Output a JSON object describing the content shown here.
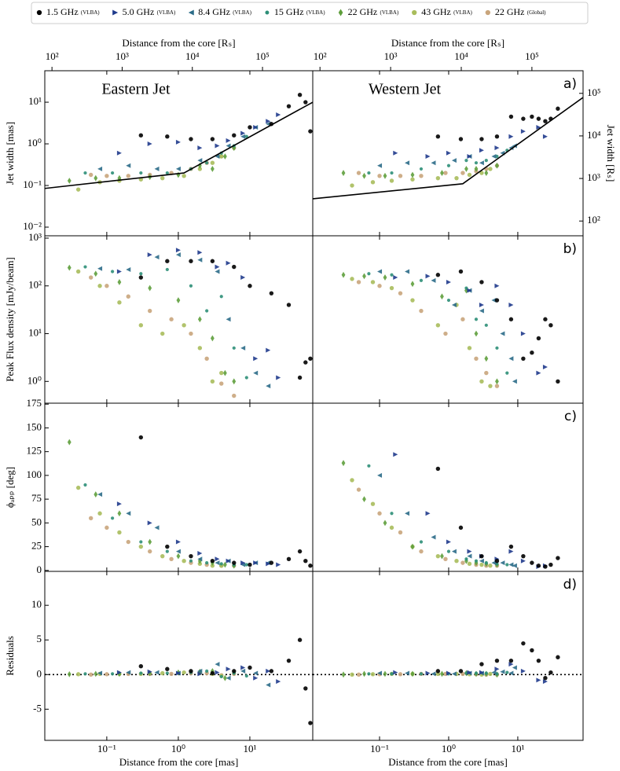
{
  "legend": {
    "items": [
      {
        "name": "1.5 GHz",
        "note": "(VLBA)",
        "color": "#000000",
        "marker": "circle"
      },
      {
        "name": "5.0 GHz",
        "note": "(VLBA)",
        "color": "#1f3a8c",
        "marker": "tri-right"
      },
      {
        "name": "8.4 GHz",
        "note": "(VLBA)",
        "color": "#2b6c88",
        "marker": "tri-left"
      },
      {
        "name": "15 GHz",
        "note": "(VLBA)",
        "color": "#2e8f78",
        "marker": "dot"
      },
      {
        "name": "22 GHz",
        "note": "(VLBA)",
        "color": "#5e9e3c",
        "marker": "diamond"
      },
      {
        "name": "43 GHz",
        "note": "(VLBA)",
        "color": "#a9bd5c",
        "marker": "hex"
      },
      {
        "name": "22 GHz",
        "note": "(Global)",
        "color": "#c9a57c",
        "marker": "circle"
      }
    ]
  },
  "chart_data": [
    {
      "type": "scatter",
      "title": "Eastern Jet",
      "xlabel": "Distance from the core [mas]",
      "x2label": "Distance from the core [Rₛ]",
      "xlog": true,
      "xlim": [
        0.0136,
        75.7
      ],
      "xticks": [
        {
          "value": 0.1,
          "label": "10⁻¹"
        },
        {
          "value": 1,
          "label": "10⁰"
        },
        {
          "value": 10,
          "label": "10¹"
        }
      ],
      "x2lim": [
        79,
        520000
      ],
      "x2ticks": [
        {
          "value": 100,
          "label": "10²"
        },
        {
          "value": 1000,
          "label": "10³"
        },
        {
          "value": 10000,
          "label": "10⁴"
        },
        {
          "value": 100000,
          "label": "10⁵"
        }
      ],
      "x": [
        [
          0.3,
          0.7,
          1.5,
          3,
          6,
          10,
          20,
          35,
          50,
          60,
          70
        ],
        [
          0.15,
          0.4,
          1,
          2,
          3.5,
          5,
          8,
          12,
          18,
          25
        ],
        [
          0.08,
          0.2,
          0.5,
          1,
          2,
          3.5,
          5,
          8,
          12,
          18
        ],
        [
          0.05,
          0.12,
          0.3,
          0.7,
          1.5,
          2.5,
          4,
          6,
          9
        ],
        [
          0.03,
          0.07,
          0.15,
          0.4,
          1,
          2,
          3,
          4.5,
          6
        ],
        [
          0.04,
          0.08,
          0.15,
          0.3,
          0.6,
          1.2,
          2,
          3,
          4
        ],
        [
          0.06,
          0.1,
          0.2,
          0.4,
          0.8,
          1.5,
          2.5,
          4,
          6
        ]
      ],
      "panels": [
        {
          "ylabel": "Jet width [mas]",
          "log": true,
          "ylim": [
            0.0062,
            57
          ],
          "yticks": [
            {
              "value": 0.01,
              "label": "10⁻²"
            },
            {
              "value": 0.1,
              "label": "10⁻¹"
            },
            {
              "value": 1,
              "label": "10⁰"
            },
            {
              "value": 10,
              "label": "10¹"
            }
          ],
          "fit": {
            "color": "#000000",
            "x": [
              0.0136,
              1.2,
              75.7
            ],
            "values": [
              0.085,
              0.2,
              10
            ]
          },
          "values": [
            [
              1.6,
              1.5,
              1.3,
              1.3,
              1.6,
              2.5,
              3,
              8,
              15,
              10,
              2
            ],
            [
              0.6,
              1.0,
              1.1,
              0.8,
              0.9,
              1.2,
              1.8,
              2.5,
              3.5,
              5
            ],
            [
              0.25,
              0.3,
              0.25,
              0.25,
              0.4,
              0.5,
              0.9,
              1.5,
              2.5,
              3
            ],
            [
              0.2,
              0.2,
              0.2,
              0.2,
              0.25,
              0.35,
              0.6,
              0.9,
              1.5
            ],
            [
              0.13,
              0.15,
              0.15,
              0.16,
              0.18,
              0.3,
              0.25,
              0.5,
              0.8
            ],
            [
              0.08,
              0.12,
              0.13,
              0.14,
              0.15,
              0.17,
              0.25,
              0.35,
              0.5
            ],
            [
              0.18,
              0.17,
              0.17,
              0.18,
              0.2,
              0.25,
              0.35,
              0.5,
              0.8
            ]
          ]
        },
        {
          "ylabel": "Peak Flux density [mJy/beam]",
          "log": true,
          "ylim": [
            0.35,
            1120
          ],
          "yticks": [
            {
              "value": 1,
              "label": "10⁰"
            },
            {
              "value": 10,
              "label": "10¹"
            },
            {
              "value": 100,
              "label": "10²"
            },
            {
              "value": 1000,
              "label": "10³"
            }
          ],
          "values": [
            [
              150,
              330,
              330,
              330,
              250,
              100,
              70,
              40,
              1.2,
              2.5,
              3
            ],
            [
              200,
              450,
              560,
              500,
              250,
              300,
              150,
              3,
              4.5,
              1.2
            ],
            [
              230,
              220,
              400,
              450,
              350,
              200,
              20,
              5,
              1.5,
              0.8
            ],
            [
              250,
              200,
              180,
              220,
              100,
              30,
              60,
              5,
              1.2
            ],
            [
              240,
              180,
              120,
              90,
              50,
              20,
              8,
              1.5,
              1
            ],
            [
              200,
              100,
              45,
              15,
              10,
              15,
              5,
              1,
              1.5
            ],
            [
              150,
              100,
              60,
              30,
              20,
              10,
              3,
              0.9,
              0.5
            ]
          ]
        },
        {
          "ylabel": "ϕₐₚₚ [deg]",
          "log": false,
          "ylim": [
            -1,
            176
          ],
          "yticks": [
            0,
            25,
            50,
            75,
            100,
            125,
            150,
            175
          ],
          "values": [
            [
              140,
              25,
              15,
              10,
              8,
              6,
              8,
              12,
              20,
              10,
              5
            ],
            [
              70,
              50,
              30,
              18,
              12,
              10,
              8,
              8,
              7,
              6
            ],
            [
              80,
              60,
              45,
              20,
              12,
              8,
              10,
              6,
              8,
              8
            ],
            [
              90,
              55,
              30,
              20,
              10,
              8,
              7,
              6,
              6
            ],
            [
              135,
              80,
              60,
              30,
              15,
              10,
              8,
              6,
              5
            ],
            [
              87,
              60,
              40,
              25,
              15,
              10,
              7,
              5,
              5
            ],
            [
              55,
              45,
              30,
              20,
              12,
              8,
              6,
              5,
              5
            ]
          ]
        },
        {
          "ylabel": "Residuals",
          "log": false,
          "ylim": [
            -9.5,
            14.9
          ],
          "yticks": [
            -5,
            0,
            5,
            10
          ],
          "hline": 0,
          "values": [
            [
              1.2,
              0.8,
              0.5,
              0.2,
              0.5,
              1,
              0.5,
              2,
              5,
              -2,
              -7
            ],
            [
              0.3,
              0.4,
              0.2,
              0.1,
              0.3,
              0.8,
              1,
              -0.5,
              0.5,
              -1
            ],
            [
              0.2,
              0.3,
              0.3,
              0.2,
              0.5,
              1.5,
              -0.5,
              0.5,
              0.2,
              -1.5
            ],
            [
              0.1,
              0.1,
              0.2,
              0.2,
              0.3,
              0.5,
              -0.3,
              0.2,
              -0.2
            ],
            [
              0.05,
              0.1,
              0.1,
              0.2,
              0.3,
              0.4,
              0.5,
              -0.5,
              0.3
            ],
            [
              0.05,
              0.1,
              0.1,
              0.1,
              0.2,
              0.3,
              0.2,
              0.1,
              -0.2
            ],
            [
              0.0,
              0.05,
              0.1,
              0.1,
              0.1,
              0.2,
              0.2,
              -0.1,
              0.1
            ]
          ]
        }
      ]
    },
    {
      "type": "scatter",
      "title": "Western Jet",
      "xlabel": "Distance from the core [mas]",
      "x2label": "Distance from the core [Rₛ]",
      "xlog": true,
      "xlim": [
        0.0108,
        88
      ],
      "xticks": [
        {
          "value": 0.1,
          "label": "10⁻¹"
        },
        {
          "value": 1,
          "label": "10⁰"
        },
        {
          "value": 10,
          "label": "10¹"
        }
      ],
      "x2lim": [
        79,
        530000
      ],
      "x2ticks": [
        {
          "value": 100,
          "label": "10²"
        },
        {
          "value": 1000,
          "label": "10³"
        },
        {
          "value": 10000,
          "label": "10⁴"
        },
        {
          "value": 100000,
          "label": "10⁵"
        }
      ],
      "x": [
        [
          0.7,
          1.5,
          3,
          5,
          8,
          12,
          16,
          20,
          25,
          30,
          38
        ],
        [
          0.17,
          0.5,
          1,
          2,
          3,
          5,
          8,
          12,
          20,
          25
        ],
        [
          0.1,
          0.25,
          0.6,
          1.2,
          2,
          3,
          4.5,
          6,
          8,
          9
        ],
        [
          0.07,
          0.15,
          0.4,
          1,
          1.8,
          2.5,
          3.5,
          5,
          7
        ],
        [
          0.03,
          0.06,
          0.12,
          0.3,
          0.8,
          1.8,
          2.5,
          3.5,
          5
        ],
        [
          0.04,
          0.08,
          0.15,
          0.3,
          0.7,
          1.3,
          2,
          3,
          4
        ],
        [
          0.05,
          0.1,
          0.2,
          0.4,
          0.9,
          1.6,
          2.5,
          3.5,
          5
        ]
      ],
      "panels": [
        {
          "label": "a)",
          "log": true,
          "ylim": [
            0.0062,
            57
          ],
          "y2label": "Jet width [Rₛ]",
          "y2lim": [
            45,
            340000
          ],
          "y2ticks": [
            {
              "value": 100,
              "label": "10²"
            },
            {
              "value": 1000,
              "label": "10³"
            },
            {
              "value": 10000,
              "label": "10⁴"
            },
            {
              "value": 100000,
              "label": "10⁵"
            }
          ],
          "fit": {
            "color": "#000000",
            "x": [
              0.0108,
              1.6,
              88
            ],
            "values": [
              0.048,
              0.11,
              13
            ]
          },
          "values": [
            [
              1.5,
              1.3,
              1.3,
              1.5,
              4.5,
              4,
              4.5,
              4,
              3.5,
              4,
              7
            ],
            [
              0.6,
              0.5,
              0.6,
              0.5,
              0.7,
              0.8,
              1.5,
              2.0,
              2.5,
              1.5
            ],
            [
              0.3,
              0.35,
              0.35,
              0.4,
              0.5,
              0.35,
              0.5,
              0.6,
              0.8,
              0.9
            ],
            [
              0.2,
              0.2,
              0.25,
              0.3,
              0.4,
              0.35,
              0.4,
              0.5,
              0.7
            ],
            [
              0.2,
              0.17,
              0.17,
              0.18,
              0.2,
              0.25,
              0.25,
              0.2,
              0.3
            ],
            [
              0.1,
              0.12,
              0.13,
              0.14,
              0.15,
              0.15,
              0.18,
              0.2,
              0.25
            ],
            [
              0.2,
              0.17,
              0.17,
              0.17,
              0.2,
              0.2,
              0.22,
              0.25,
              0.3
            ]
          ]
        },
        {
          "label": "b)",
          "log": true,
          "ylim": [
            0.35,
            1120
          ],
          "values": [
            [
              170,
              200,
              120,
              50,
              20,
              3,
              4,
              8,
              20,
              15,
              1
            ],
            [
              150,
              160,
              120,
              80,
              40,
              100,
              40,
              10,
              1.5,
              2
            ],
            [
              200,
              200,
              130,
              40,
              80,
              30,
              50,
              10,
              3,
              1
            ],
            [
              180,
              170,
              130,
              50,
              90,
              20,
              15,
              5,
              1.5
            ],
            [
              170,
              160,
              150,
              110,
              60,
              80,
              10,
              3,
              1
            ],
            [
              140,
              120,
              90,
              50,
              15,
              40,
              5,
              1,
              0.8
            ],
            [
              120,
              100,
              70,
              30,
              10,
              20,
              3,
              1.5,
              0.8
            ]
          ]
        },
        {
          "label": "c)",
          "log": false,
          "ylim": [
            -1,
            176
          ],
          "values": [
            [
              107,
              45,
              15,
              10,
              25,
              15,
              8,
              5,
              4,
              6,
              13
            ],
            [
              122,
              60,
              30,
              20,
              15,
              12,
              20,
              10,
              4,
              5
            ],
            [
              100,
              60,
              35,
              20,
              15,
              10,
              8,
              8,
              6,
              5
            ],
            [
              110,
              60,
              30,
              20,
              12,
              10,
              8,
              7,
              6
            ],
            [
              113,
              75,
              50,
              25,
              15,
              10,
              8,
              7,
              6
            ],
            [
              95,
              70,
              45,
              25,
              15,
              10,
              7,
              6,
              5
            ],
            [
              85,
              60,
              40,
              20,
              12,
              8,
              6,
              5,
              5
            ]
          ]
        },
        {
          "label": "d)",
          "log": false,
          "ylim": [
            -9.5,
            14.9
          ],
          "hline": 0,
          "values": [
            [
              0.5,
              0.5,
              1.5,
              2,
              2,
              4.5,
              3.5,
              2,
              -0.5,
              0.3,
              2.5
            ],
            [
              0.3,
              0.2,
              0.2,
              0.3,
              0.3,
              0.8,
              1.5,
              0.5,
              -0.8,
              -1
            ],
            [
              0.2,
              0.2,
              0.1,
              0.1,
              0.2,
              0.2,
              0.3,
              0.4,
              0.2,
              1
            ],
            [
              0.1,
              0.1,
              0.1,
              0.1,
              0.2,
              0.2,
              0.2,
              0.1,
              0.3
            ],
            [
              0,
              0.1,
              0.1,
              0.1,
              0.1,
              0.2,
              0.1,
              0.1,
              0
            ],
            [
              0,
              0.05,
              0.1,
              0.1,
              0.1,
              0.1,
              0.05,
              0,
              0.1
            ],
            [
              0,
              0.05,
              0.05,
              0.1,
              0.1,
              0.1,
              0.05,
              0,
              0
            ]
          ]
        }
      ]
    }
  ]
}
